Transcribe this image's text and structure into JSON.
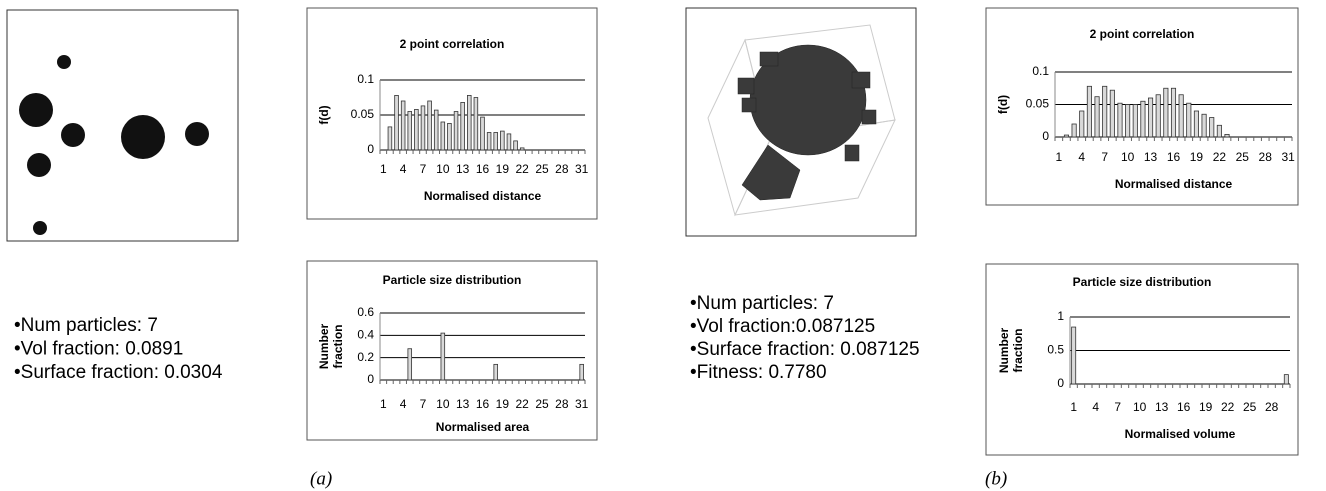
{
  "panels": [
    {
      "label": "(a)",
      "stats": [
        "•Num particles: 7",
        "•Vol fraction: 0.0891",
        "•Surface fraction: 0.0304"
      ]
    },
    {
      "label": "(b)",
      "stats": [
        "•Num particles: 7",
        "•Vol fraction:0.087125",
        "•Surface fraction: 0.087125",
        "•Fitness: 0.7780"
      ]
    }
  ],
  "chart_data": [
    {
      "type": "bar",
      "title": "2 point correlation",
      "x_label": "Normalised distance",
      "y_label": [
        "f(d)"
      ],
      "categories": [
        "1",
        null,
        null,
        "4",
        null,
        null,
        "7",
        null,
        null,
        "10",
        null,
        null,
        "13",
        null,
        null,
        "16",
        null,
        null,
        "19",
        null,
        null,
        "22",
        null,
        null,
        "25",
        null,
        null,
        "28",
        null,
        null,
        "31"
      ],
      "values": [
        0,
        0.033,
        0.078,
        0.07,
        0.055,
        0.058,
        0.063,
        0.07,
        0.057,
        0.04,
        0.038,
        0.055,
        0.068,
        0.078,
        0.075,
        0.047,
        0.025,
        0.025,
        0.027,
        0.023,
        0.013,
        0.003,
        0,
        0,
        0,
        0,
        0,
        0,
        0,
        0,
        0
      ],
      "color": "#d9d9d9",
      "ylim": [
        0,
        0.1
      ],
      "yticks": [
        0,
        0.05,
        0.1
      ],
      "grid": true
    },
    {
      "type": "bar",
      "title": "Particle size distribution",
      "x_label": "Normalised area",
      "y_label": [
        "Number",
        "fraction"
      ],
      "categories": [
        "1",
        null,
        null,
        "4",
        null,
        null,
        "7",
        null,
        null,
        "10",
        null,
        null,
        "13",
        null,
        null,
        "16",
        null,
        null,
        "19",
        null,
        null,
        "22",
        null,
        null,
        "25",
        null,
        null,
        "28",
        null,
        null,
        "31"
      ],
      "values": [
        0,
        0,
        0,
        0,
        0.28,
        0,
        0,
        0,
        0,
        0.42,
        0,
        0,
        0,
        0,
        0,
        0,
        0,
        0.14,
        0,
        0,
        0,
        0,
        0,
        0,
        0,
        0,
        0,
        0,
        0,
        0,
        0.14
      ],
      "color": "#d9d9d9",
      "ylim": [
        0,
        0.6
      ],
      "yticks": [
        0,
        0.2,
        0.4,
        0.6
      ],
      "grid": true
    },
    {
      "type": "bar",
      "title": "2 point correlation",
      "x_label": "Normalised distance",
      "y_label": [
        "f(d)"
      ],
      "categories": [
        "1",
        null,
        null,
        "4",
        null,
        null,
        "7",
        null,
        null,
        "10",
        null,
        null,
        "13",
        null,
        null,
        "16",
        null,
        null,
        "19",
        null,
        null,
        "22",
        null,
        null,
        "25",
        null,
        null,
        "28",
        null,
        null,
        "31"
      ],
      "values": [
        0,
        0.003,
        0.02,
        0.04,
        0.078,
        0.062,
        0.078,
        0.072,
        0.052,
        0.05,
        0.05,
        0.055,
        0.06,
        0.065,
        0.075,
        0.075,
        0.065,
        0.052,
        0.04,
        0.035,
        0.03,
        0.018,
        0.004,
        0,
        0,
        0,
        0,
        0,
        0,
        0,
        0
      ],
      "color": "#d9d9d9",
      "ylim": [
        0,
        0.1
      ],
      "yticks": [
        0,
        0.05,
        0.1
      ],
      "grid": true
    },
    {
      "type": "bar",
      "title": "Particle size distribution",
      "x_label": "Normalised volume",
      "y_label": [
        "Number",
        "fraction"
      ],
      "categories": [
        "1",
        null,
        null,
        "4",
        null,
        null,
        "7",
        null,
        null,
        "10",
        null,
        null,
        "13",
        null,
        null,
        "16",
        null,
        null,
        "19",
        null,
        null,
        "22",
        null,
        null,
        "25",
        null,
        null,
        "28",
        null,
        null
      ],
      "values": [
        0.85,
        0,
        0,
        0,
        0,
        0,
        0,
        0,
        0,
        0,
        0,
        0,
        0,
        0,
        0,
        0,
        0,
        0,
        0,
        0,
        0,
        0,
        0,
        0,
        0,
        0,
        0,
        0,
        0,
        0.14
      ],
      "color": "#d9d9d9",
      "ylim": [
        0,
        1
      ],
      "yticks": [
        0,
        0.5,
        1
      ],
      "grid": true
    }
  ]
}
